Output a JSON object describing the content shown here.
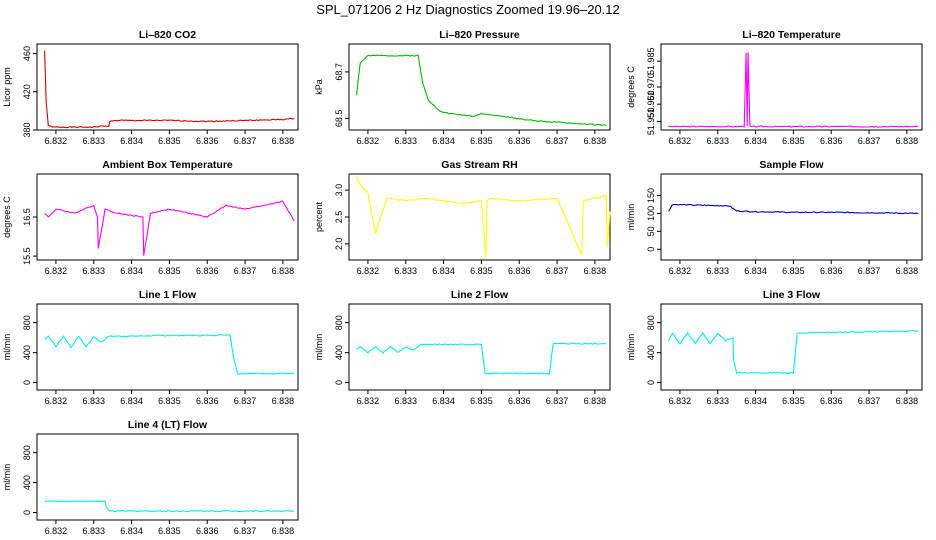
{
  "figure_title": "SPL_071206  2 Hz Diagnostics Zoomed 19.96–20.12",
  "chart_data": [
    {
      "type": "line",
      "title": "Li–820 CO2",
      "ylabel": "Licor ppm",
      "color": "#dd0000",
      "xlim": [
        6.8315,
        6.8384
      ],
      "ylim": [
        380,
        470
      ],
      "xticks": [
        "6.832",
        "6.833",
        "6.834",
        "6.835",
        "6.836",
        "6.837",
        "6.838"
      ],
      "yticks": [
        "380",
        "420",
        "460"
      ],
      "x": [
        6.8317,
        6.83172,
        6.83174,
        6.8318,
        6.8319,
        6.8325,
        6.833,
        6.8332,
        6.8334,
        6.83342,
        6.8336,
        6.8345,
        6.835,
        6.836,
        6.837,
        6.838,
        6.8383
      ],
      "y": [
        463,
        440,
        410,
        385,
        383,
        383,
        383,
        384,
        384,
        389,
        390,
        390,
        390,
        389,
        390,
        391,
        392
      ]
    },
    {
      "type": "line",
      "title": "Li–820 Pressure",
      "ylabel": "kPa",
      "color": "#00bb00",
      "xlim": [
        6.8315,
        6.8384
      ],
      "ylim": [
        68.45,
        68.82
      ],
      "xticks": [
        "6.832",
        "6.833",
        "6.834",
        "6.835",
        "6.836",
        "6.837",
        "6.838"
      ],
      "yticks": [
        "68.5",
        "68.7"
      ],
      "x": [
        6.8317,
        6.83175,
        6.8318,
        6.832,
        6.8322,
        6.833,
        6.8332,
        6.83333,
        6.83345,
        6.8336,
        6.8339,
        6.8342,
        6.8348,
        6.835,
        6.8355,
        6.8364,
        6.8373,
        6.8383
      ],
      "y": [
        68.6,
        68.68,
        68.74,
        68.77,
        68.77,
        68.77,
        68.77,
        68.77,
        68.65,
        68.58,
        68.53,
        68.52,
        68.51,
        68.52,
        68.51,
        68.49,
        68.48,
        68.47
      ]
    },
    {
      "type": "line",
      "title": "Li–820 Temperature",
      "ylabel": "degrees C",
      "color": "#ff00ff",
      "xlim": [
        6.8315,
        6.8384
      ],
      "ylim": [
        51.945,
        51.995
      ],
      "xticks": [
        "6.832",
        "6.833",
        "6.834",
        "6.835",
        "6.836",
        "6.837",
        "6.838"
      ],
      "yticks": [
        "51.950",
        "51.960",
        "51.970",
        "51.985"
      ],
      "x": [
        6.8317,
        6.8337,
        6.83375,
        6.83378,
        6.8338,
        6.83385,
        6.8383
      ],
      "y": [
        51.947,
        51.947,
        51.99,
        51.947,
        51.99,
        51.947,
        51.947
      ]
    },
    {
      "type": "line",
      "title": "Ambient Box Temperature",
      "ylabel": "degrees C",
      "color": "#ff00ff",
      "xlim": [
        6.8315,
        6.8384
      ],
      "ylim": [
        15.4,
        17.6
      ],
      "xticks": [
        "6.832",
        "6.833",
        "6.834",
        "6.835",
        "6.836",
        "6.837",
        "6.838"
      ],
      "yticks": [
        "15.5",
        "16.5"
      ],
      "x": [
        6.8317,
        6.8318,
        6.832,
        6.8325,
        6.833,
        6.8331,
        6.83312,
        6.8333,
        6.8336,
        6.8343,
        6.83432,
        6.8345,
        6.835,
        6.8355,
        6.836,
        6.8365,
        6.837,
        6.8375,
        6.838,
        6.8383
      ],
      "y": [
        16.6,
        16.5,
        16.7,
        16.6,
        16.8,
        16.5,
        15.7,
        16.7,
        16.6,
        16.5,
        15.5,
        16.6,
        16.7,
        16.6,
        16.5,
        16.8,
        16.7,
        16.8,
        16.9,
        16.4
      ]
    },
    {
      "type": "line",
      "title": "Gas Stream RH",
      "ylabel": "percent",
      "color": "#ffff00",
      "xlim": [
        6.8315,
        6.8384
      ],
      "ylim": [
        1.7,
        3.3
      ],
      "xticks": [
        "6.832",
        "6.833",
        "6.834",
        "6.835",
        "6.836",
        "6.837",
        "6.838"
      ],
      "yticks": [
        "2.0",
        "2.5",
        "3.0"
      ],
      "x": [
        6.8317,
        6.8318,
        6.832,
        6.8322,
        6.8325,
        6.833,
        6.8335,
        6.834,
        6.8345,
        6.835,
        6.83512,
        6.83515,
        6.8352,
        6.836,
        6.837,
        6.83765,
        6.8377,
        6.8383,
        6.83833,
        6.8384
      ],
      "y": [
        3.25,
        3.1,
        2.95,
        2.2,
        2.85,
        2.8,
        2.85,
        2.8,
        2.75,
        2.8,
        1.75,
        2.8,
        2.85,
        2.8,
        2.85,
        1.8,
        2.8,
        2.9,
        1.95,
        2.6
      ]
    },
    {
      "type": "line",
      "title": "Sample Flow",
      "ylabel": "ml/min",
      "color": "#0000cc",
      "xlim": [
        6.8315,
        6.8384
      ],
      "ylim": [
        -30,
        210
      ],
      "xticks": [
        "6.832",
        "6.833",
        "6.834",
        "6.835",
        "6.836",
        "6.837",
        "6.838"
      ],
      "yticks": [
        "0",
        "50",
        "100",
        "150"
      ],
      "x": [
        6.8317,
        6.83175,
        6.8318,
        6.8325,
        6.833,
        6.8333,
        6.8335,
        6.834,
        6.835,
        6.836,
        6.837,
        6.8383
      ],
      "y": [
        105,
        115,
        125,
        123,
        122,
        121,
        107,
        105,
        103,
        103,
        102,
        100
      ]
    },
    {
      "type": "line",
      "title": "Line 1 Flow",
      "ylabel": "ml/min",
      "color": "#00eeee",
      "xlim": [
        6.8315,
        6.8384
      ],
      "ylim": [
        -100,
        1050
      ],
      "xticks": [
        "6.832",
        "6.833",
        "6.834",
        "6.835",
        "6.836",
        "6.837",
        "6.838"
      ],
      "yticks": [
        "0",
        "400",
        "800"
      ],
      "x": [
        6.8317,
        6.8318,
        6.832,
        6.8322,
        6.8324,
        6.8326,
        6.8328,
        6.833,
        6.8332,
        6.8333,
        6.8334,
        6.834,
        6.835,
        6.836,
        6.8366,
        6.8367,
        6.8368,
        6.8375,
        6.8383
      ],
      "y": [
        580,
        620,
        480,
        620,
        470,
        620,
        480,
        610,
        540,
        580,
        620,
        620,
        630,
        630,
        640,
        330,
        120,
        120,
        120
      ]
    },
    {
      "type": "line",
      "title": "Line 2 Flow",
      "ylabel": "ml/min",
      "color": "#00eeee",
      "xlim": [
        6.8315,
        6.8384
      ],
      "ylim": [
        -100,
        1050
      ],
      "xticks": [
        "6.832",
        "6.833",
        "6.834",
        "6.835",
        "6.836",
        "6.837",
        "6.838"
      ],
      "yticks": [
        "0",
        "400",
        "800"
      ],
      "x": [
        6.8317,
        6.8318,
        6.832,
        6.8322,
        6.8324,
        6.8326,
        6.8328,
        6.833,
        6.8332,
        6.8334,
        6.834,
        6.835,
        6.83505,
        6.8351,
        6.836,
        6.8368,
        6.83685,
        6.8369,
        6.8375,
        6.8383
      ],
      "y": [
        440,
        480,
        400,
        480,
        400,
        480,
        400,
        470,
        430,
        510,
        510,
        510,
        300,
        120,
        120,
        120,
        350,
        520,
        520,
        520
      ]
    },
    {
      "type": "line",
      "title": "Line 3 Flow",
      "ylabel": "ml/min",
      "color": "#00eeee",
      "xlim": [
        6.8315,
        6.8384
      ],
      "ylim": [
        -100,
        1050
      ],
      "xticks": [
        "6.832",
        "6.833",
        "6.834",
        "6.835",
        "6.836",
        "6.837",
        "6.838"
      ],
      "yticks": [
        "0",
        "400",
        "800"
      ],
      "x": [
        6.8317,
        6.8318,
        6.832,
        6.8322,
        6.8324,
        6.8326,
        6.8328,
        6.833,
        6.8332,
        6.8334,
        6.83342,
        6.8335,
        6.834,
        6.835,
        6.83505,
        6.8351,
        6.836,
        6.837,
        6.8383
      ],
      "y": [
        560,
        660,
        520,
        660,
        520,
        660,
        520,
        660,
        560,
        600,
        300,
        130,
        130,
        130,
        400,
        660,
        670,
        680,
        690
      ]
    },
    {
      "type": "line",
      "title": "Line 4 (LT) Flow",
      "ylabel": "ml/min",
      "color": "#00eeee",
      "xlim": [
        6.8315,
        6.8384
      ],
      "ylim": [
        -100,
        1050
      ],
      "xticks": [
        "6.832",
        "6.833",
        "6.834",
        "6.835",
        "6.836",
        "6.837",
        "6.838"
      ],
      "yticks": [
        "0",
        "400",
        "800"
      ],
      "x": [
        6.8317,
        6.8325,
        6.8333,
        6.83333,
        6.8334,
        6.835,
        6.8383
      ],
      "y": [
        150,
        150,
        150,
        70,
        20,
        20,
        20
      ]
    }
  ]
}
